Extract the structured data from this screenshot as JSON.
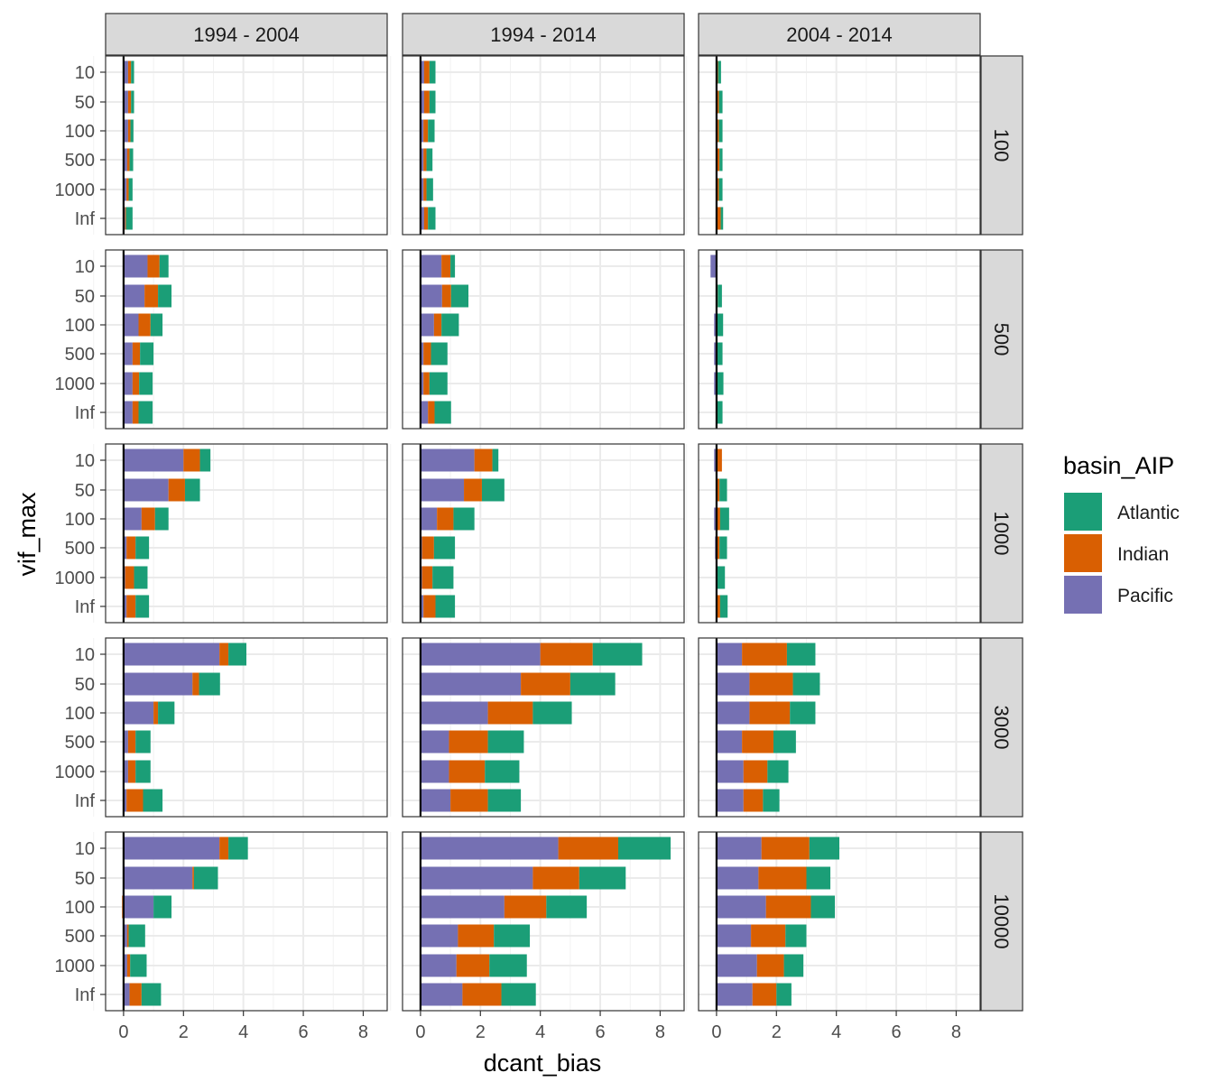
{
  "chart_data": {
    "type": "bar",
    "orientation": "horizontal",
    "stacked": true,
    "xlabel": "dcant_bias",
    "ylabel": "vif_max",
    "xlim": [
      -0.6,
      8.8
    ],
    "x_ticks": [
      0,
      2,
      4,
      6,
      8
    ],
    "categories": [
      "10",
      "50",
      "100",
      "500",
      "1000",
      "Inf"
    ],
    "columns": [
      "1994 - 2004",
      "1994 - 2014",
      "2004 - 2014"
    ],
    "rows": [
      "100",
      "500",
      "1000",
      "3000",
      "10000"
    ],
    "legend": {
      "title": "basin_AIP",
      "position": "right",
      "entries": [
        "Atlantic",
        "Indian",
        "Pacific"
      ]
    },
    "series_order": [
      "Pacific",
      "Indian",
      "Atlantic"
    ],
    "colors": {
      "Atlantic": "#1b9e77",
      "Indian": "#d95f02",
      "Pacific": "#7570b3"
    },
    "grid": true,
    "zero_line": true,
    "panels": [
      {
        "column": "1994 - 2004",
        "row": "100",
        "Pacific": [
          0.15,
          0.15,
          0.15,
          0.12,
          0.1,
          0.05
        ],
        "Indian": [
          0.1,
          0.1,
          0.08,
          0.08,
          0.07,
          0.03
        ],
        "Atlantic": [
          0.1,
          0.1,
          0.1,
          0.12,
          0.13,
          0.22
        ]
      },
      {
        "column": "1994 - 2014",
        "row": "100",
        "Pacific": [
          0.12,
          0.12,
          0.1,
          0.1,
          0.1,
          0.12
        ],
        "Indian": [
          0.18,
          0.18,
          0.15,
          0.1,
          0.1,
          0.13
        ],
        "Atlantic": [
          0.2,
          0.2,
          0.22,
          0.2,
          0.22,
          0.25
        ]
      },
      {
        "column": "2004 - 2014",
        "row": "100",
        "Pacific": [
          0.02,
          0.02,
          0.02,
          0.02,
          0.02,
          0.02
        ],
        "Indian": [
          0.03,
          0.06,
          0.06,
          0.08,
          0.06,
          0.12
        ],
        "Atlantic": [
          0.1,
          0.12,
          0.12,
          0.1,
          0.12,
          0.08
        ]
      },
      {
        "column": "1994 - 2004",
        "row": "500",
        "Pacific": [
          0.8,
          0.7,
          0.5,
          0.3,
          0.3,
          0.3
        ],
        "Indian": [
          0.4,
          0.45,
          0.4,
          0.25,
          0.22,
          0.2
        ],
        "Atlantic": [
          0.3,
          0.45,
          0.4,
          0.45,
          0.45,
          0.47
        ]
      },
      {
        "column": "1994 - 2014",
        "row": "500",
        "Pacific": [
          0.7,
          0.72,
          0.45,
          0.1,
          0.1,
          0.25
        ],
        "Indian": [
          0.3,
          0.3,
          0.25,
          0.25,
          0.2,
          0.22
        ],
        "Atlantic": [
          0.15,
          0.58,
          0.58,
          0.55,
          0.6,
          0.55
        ]
      },
      {
        "column": "2004 - 2014",
        "row": "500",
        "Pacific": [
          -0.2,
          -0.02,
          -0.08,
          -0.08,
          -0.08,
          -0.02
        ],
        "Indian": [
          0.0,
          0.04,
          0.03,
          0.03,
          0.03,
          0.0
        ],
        "Atlantic": [
          0.0,
          0.14,
          0.19,
          0.17,
          0.2,
          0.2
        ]
      },
      {
        "column": "1994 - 2004",
        "row": "1000",
        "Pacific": [
          2.0,
          1.5,
          0.6,
          0.1,
          0.05,
          0.1
        ],
        "Indian": [
          0.55,
          0.55,
          0.45,
          0.3,
          0.3,
          0.3
        ],
        "Atlantic": [
          0.35,
          0.5,
          0.45,
          0.45,
          0.45,
          0.45
        ]
      },
      {
        "column": "1994 - 2014",
        "row": "1000",
        "Pacific": [
          1.8,
          1.45,
          0.55,
          0.05,
          0.05,
          0.1
        ],
        "Indian": [
          0.6,
          0.6,
          0.55,
          0.4,
          0.35,
          0.4
        ],
        "Atlantic": [
          0.2,
          0.75,
          0.7,
          0.7,
          0.7,
          0.65
        ]
      },
      {
        "column": "2004 - 2014",
        "row": "1000",
        "Pacific": [
          -0.08,
          0.0,
          -0.08,
          -0.05,
          0.0,
          0.0
        ],
        "Indian": [
          0.18,
          0.1,
          0.12,
          0.1,
          0.0,
          0.12
        ],
        "Atlantic": [
          0.0,
          0.25,
          0.3,
          0.25,
          0.28,
          0.25
        ]
      },
      {
        "column": "1994 - 2004",
        "row": "3000",
        "Pacific": [
          3.2,
          2.3,
          1.0,
          0.15,
          0.15,
          0.1
        ],
        "Indian": [
          0.3,
          0.22,
          0.15,
          0.25,
          0.25,
          0.55
        ],
        "Atlantic": [
          0.6,
          0.7,
          0.55,
          0.5,
          0.5,
          0.65
        ]
      },
      {
        "column": "1994 - 2014",
        "row": "3000",
        "Pacific": [
          4.0,
          3.35,
          2.25,
          0.95,
          0.95,
          1.0
        ],
        "Indian": [
          1.75,
          1.65,
          1.5,
          1.3,
          1.2,
          1.25
        ],
        "Atlantic": [
          1.65,
          1.5,
          1.3,
          1.2,
          1.15,
          1.1
        ]
      },
      {
        "column": "2004 - 2014",
        "row": "3000",
        "Pacific": [
          0.85,
          1.1,
          1.1,
          0.85,
          0.9,
          0.9
        ],
        "Indian": [
          1.5,
          1.45,
          1.35,
          1.05,
          0.8,
          0.65
        ],
        "Atlantic": [
          0.95,
          0.9,
          0.85,
          0.75,
          0.7,
          0.55
        ]
      },
      {
        "column": "1994 - 2004",
        "row": "10000",
        "Pacific": [
          3.2,
          2.3,
          1.0,
          0.12,
          0.12,
          0.2
        ],
        "Indian": [
          0.3,
          0.05,
          -0.05,
          0.05,
          0.1,
          0.4
        ],
        "Atlantic": [
          0.65,
          0.8,
          0.6,
          0.55,
          0.55,
          0.65
        ]
      },
      {
        "column": "1994 - 2014",
        "row": "10000",
        "Pacific": [
          4.6,
          3.75,
          2.8,
          1.25,
          1.2,
          1.4
        ],
        "Indian": [
          2.0,
          1.55,
          1.4,
          1.2,
          1.1,
          1.3
        ],
        "Atlantic": [
          1.75,
          1.55,
          1.35,
          1.2,
          1.25,
          1.15
        ]
      },
      {
        "column": "2004 - 2014",
        "row": "10000",
        "Pacific": [
          1.5,
          1.4,
          1.65,
          1.15,
          1.35,
          1.2
        ],
        "Indian": [
          1.6,
          1.6,
          1.5,
          1.15,
          0.9,
          0.8
        ],
        "Atlantic": [
          1.0,
          0.8,
          0.8,
          0.7,
          0.65,
          0.5
        ]
      }
    ]
  }
}
